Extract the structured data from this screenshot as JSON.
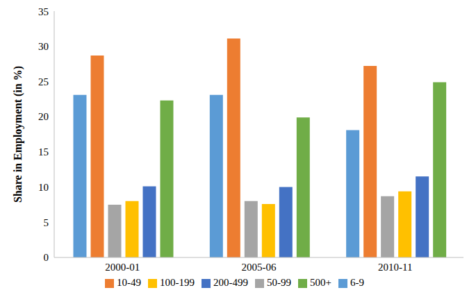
{
  "chart_data": {
    "type": "bar",
    "y_label": "Share in Employment (in %)",
    "categories": [
      "2000-01",
      "2005-06",
      "2010-11"
    ],
    "series": [
      {
        "name": "6-9",
        "color": "#5B9BD5",
        "values": [
          23.1,
          23.1,
          18.1
        ]
      },
      {
        "name": "10-49",
        "color": "#ED7D31",
        "values": [
          28.7,
          31.1,
          27.2
        ]
      },
      {
        "name": "50-99",
        "color": "#A5A5A5",
        "values": [
          7.5,
          8.0,
          8.7
        ]
      },
      {
        "name": "100-199",
        "color": "#FFC000",
        "values": [
          8.0,
          7.6,
          9.4
        ]
      },
      {
        "name": "200-499",
        "color": "#4472C4",
        "values": [
          10.1,
          10.0,
          11.5
        ]
      },
      {
        "name": "500+",
        "color": "#70AD47",
        "values": [
          22.3,
          19.9,
          24.9
        ]
      }
    ],
    "ylim": [
      0,
      35
    ],
    "yticks": [
      0,
      5,
      10,
      15,
      20,
      25,
      30,
      35
    ],
    "grid": false,
    "legend": "bottom"
  }
}
